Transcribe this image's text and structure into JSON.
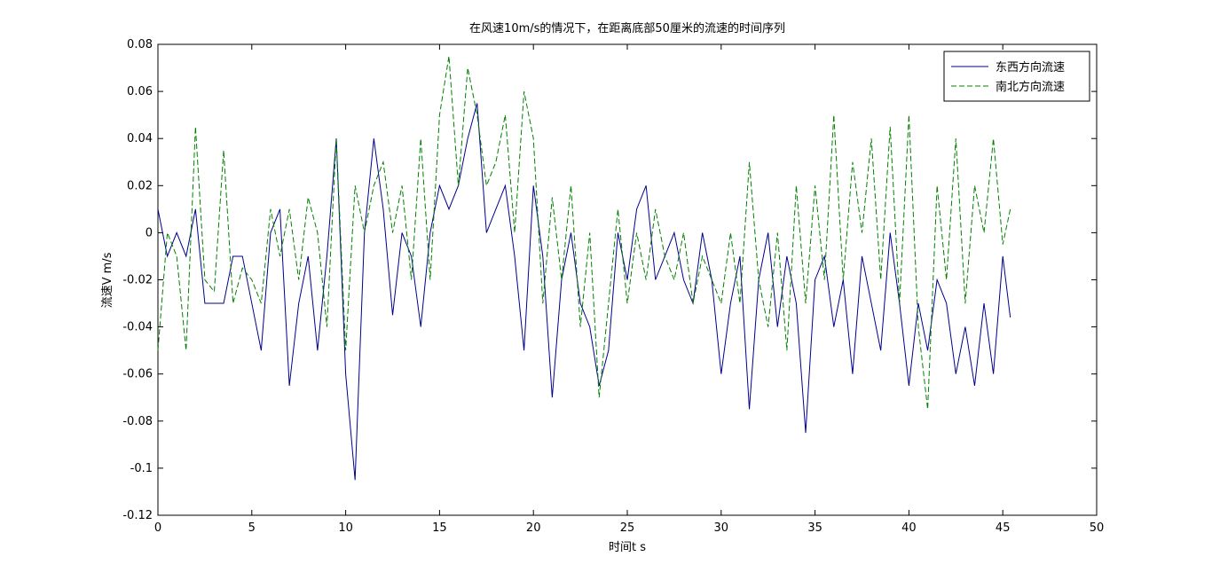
{
  "chart_data": {
    "type": "line",
    "title": "在风速10m/s的情况下，在距离底部50厘米的流速的时间序列",
    "x_label": "时间t s",
    "y_label": "流速V m/s",
    "x": [
      0,
      0.5,
      1,
      1.5,
      2,
      2.5,
      3,
      3.5,
      4,
      4.5,
      5,
      5.5,
      6,
      6.5,
      7,
      7.5,
      8,
      8.5,
      9,
      9.5,
      10,
      10.5,
      11,
      11.5,
      12,
      12.5,
      13,
      13.5,
      14,
      14.5,
      15,
      15.5,
      16,
      16.5,
      17,
      17.5,
      18,
      18.5,
      19,
      19.5,
      20,
      20.5,
      21,
      21.5,
      22,
      22.5,
      23,
      23.5,
      24,
      24.5,
      25,
      25.5,
      26,
      26.5,
      27,
      27.5,
      28,
      28.5,
      29,
      29.5,
      30,
      30.5,
      31,
      31.5,
      32,
      32.5,
      33,
      33.5,
      34,
      34.5,
      35,
      35.5,
      36,
      36.5,
      37,
      37.5,
      38,
      38.5,
      39,
      39.5,
      40,
      40.5,
      41,
      41.5,
      42,
      42.5,
      43,
      43.5,
      44,
      44.5,
      45,
      45.4
    ],
    "series": [
      {
        "name": "东西方向流速",
        "color": "#00008b",
        "dash": "solid",
        "values": [
          0.01,
          -0.01,
          0,
          -0.01,
          0.01,
          -0.03,
          -0.03,
          -0.03,
          -0.01,
          -0.01,
          -0.03,
          -0.05,
          0,
          0.01,
          -0.065,
          -0.03,
          -0.01,
          -0.05,
          -0.01,
          0.04,
          -0.06,
          -0.105,
          0,
          0.04,
          0.01,
          -0.035,
          0,
          -0.01,
          -0.04,
          0,
          0.02,
          0.01,
          0.02,
          0.04,
          0.055,
          0,
          0.01,
          0.02,
          -0.01,
          -0.05,
          0.02,
          -0.01,
          -0.07,
          -0.02,
          0,
          -0.03,
          -0.04,
          -0.065,
          -0.05,
          0,
          -0.02,
          0.01,
          0.02,
          -0.02,
          -0.01,
          0,
          -0.02,
          -0.03,
          0,
          -0.02,
          -0.06,
          -0.03,
          -0.01,
          -0.075,
          -0.02,
          0,
          -0.04,
          -0.01,
          -0.03,
          -0.085,
          -0.02,
          -0.01,
          -0.04,
          -0.02,
          -0.06,
          -0.01,
          -0.03,
          -0.05,
          0,
          -0.03,
          -0.065,
          -0.03,
          -0.05,
          -0.02,
          -0.03,
          -0.06,
          -0.04,
          -0.065,
          -0.03,
          -0.06,
          -0.01,
          -0.036
        ]
      },
      {
        "name": "南北方向流速",
        "color": "#008000",
        "dash": "dashed",
        "values": [
          -0.05,
          0,
          -0.01,
          -0.05,
          0.045,
          -0.02,
          -0.025,
          0.035,
          -0.03,
          -0.015,
          -0.02,
          -0.03,
          0.01,
          -0.01,
          0.01,
          -0.02,
          0.015,
          0,
          -0.04,
          0.04,
          -0.05,
          0.02,
          0,
          0.02,
          0.03,
          0,
          0.02,
          -0.02,
          0.04,
          -0.02,
          0.05,
          0.075,
          0.02,
          0.07,
          0.05,
          0.02,
          0.03,
          0.05,
          0,
          0.06,
          0.04,
          -0.03,
          0.015,
          -0.02,
          0.02,
          -0.04,
          0,
          -0.07,
          -0.03,
          0.01,
          -0.03,
          0,
          -0.02,
          0.01,
          -0.01,
          -0.02,
          0,
          -0.03,
          -0.01,
          -0.02,
          -0.03,
          0,
          -0.03,
          0.03,
          -0.02,
          -0.04,
          0,
          -0.05,
          0.02,
          -0.03,
          0.02,
          -0.02,
          0.05,
          -0.02,
          0.03,
          0,
          0.04,
          -0.02,
          0.045,
          -0.03,
          0.05,
          -0.04,
          -0.075,
          0.02,
          -0.02,
          0.04,
          -0.03,
          0.02,
          0,
          0.04,
          -0.005,
          0.01
        ]
      }
    ],
    "xlim": [
      0,
      50
    ],
    "xticks": [
      0,
      5,
      10,
      15,
      20,
      25,
      30,
      35,
      40,
      45,
      50
    ],
    "ylim": [
      -0.12,
      0.08
    ],
    "yticks": [
      -0.12,
      -0.1,
      -0.08,
      -0.06,
      -0.04,
      -0.02,
      0,
      0.02,
      0.04,
      0.06,
      0.08
    ],
    "legend": "upper right"
  }
}
